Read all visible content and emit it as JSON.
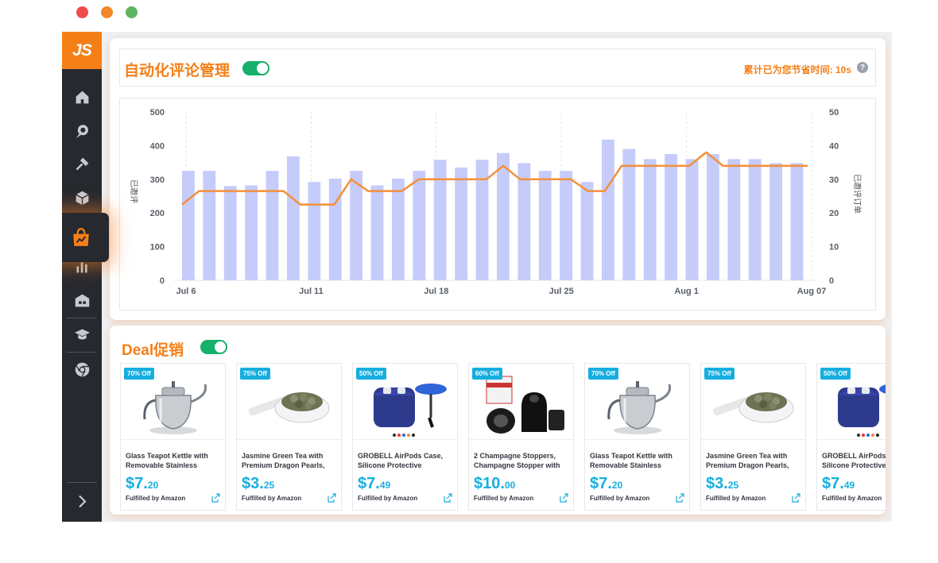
{
  "window_colors": {
    "red": "#ee4b4a",
    "orange": "#f0882a",
    "green": "#5fb55f"
  },
  "sidebar": {
    "logo": "JS",
    "icons": [
      "home-icon",
      "search-chat-icon",
      "hammer-icon",
      "box-icon",
      "shopping-bag-trend-icon",
      "bar-chart-icon",
      "warehouse-icon",
      "graduation-cap-icon",
      "chrome-icon",
      "expand-arrow-icon"
    ],
    "active": "shopping-bag-trend-icon"
  },
  "review_panel": {
    "title": "自动化评论管理",
    "toggle_on": true,
    "saved_time": "累计已为您节省时间: 10s",
    "help": "?"
  },
  "chart_data": {
    "type": "bar",
    "x_labels": [
      "Jul 6",
      "Jul 11",
      "Jul 18",
      "Jul 25",
      "Aug 1",
      "Aug 07"
    ],
    "ylabel_left": "已邀评",
    "ylabel_right": "已邀评订单",
    "left_axis_ticks": [
      "500",
      "400",
      "300",
      "200",
      "100",
      "0"
    ],
    "right_axis_ticks": [
      "50",
      "40",
      "30",
      "20",
      "10",
      "0"
    ],
    "ylim_left": [
      0,
      500
    ],
    "ylim_right": [
      0,
      50
    ],
    "bar_values": [
      325,
      325,
      280,
      282,
      325,
      368,
      292,
      302,
      325,
      282,
      302,
      325,
      358,
      335,
      358,
      378,
      348,
      325,
      325,
      292,
      418,
      390,
      360,
      375,
      360,
      375,
      360,
      360,
      348,
      348
    ],
    "line_values": [
      22.5,
      26.5,
      26.5,
      26.5,
      26.5,
      26.5,
      26.5,
      22.5,
      22.5,
      22.5,
      30,
      26.5,
      26.5,
      26.5,
      30,
      30,
      30,
      30,
      30,
      34,
      30,
      30,
      30,
      30,
      26.5,
      26.5,
      34,
      34,
      34,
      34,
      34,
      38,
      34,
      34,
      34,
      34,
      34,
      34
    ],
    "bar_color": "#c5ccfa",
    "line_color": "#f58f3a",
    "grid": "vertical-dashed"
  },
  "deal_panel": {
    "title": "Deal促销",
    "toggle_on": true,
    "cards": [
      {
        "badge": "70% Off",
        "image": "teapot-icon",
        "name1": "Glass Teapot Kettle with",
        "name2": "Removable Stainless",
        "dollars": "$7.",
        "cents": "20",
        "fulfilled": "Fulfilled by Amazon"
      },
      {
        "badge": "75% Off",
        "image": "tea-spoon-icon",
        "name1": "Jasmine Green Tea with",
        "name2": "Premium Dragon Pearls,",
        "dollars": "$3.",
        "cents": "25",
        "fulfilled": "Fulfilled by Amazon"
      },
      {
        "badge": "50% Off",
        "image": "airpods-case-icon",
        "name1": "GROBELL AirPods Case,",
        "name2": "Silicone Protective",
        "dollars": "$7.",
        "cents": "49",
        "fulfilled": "Fulfilled by Amazon"
      },
      {
        "badge": "60% Off",
        "image": "champagne-stopper-icon",
        "name1": "2 Champagne Stoppers,",
        "name2": "Champagne Stopper with",
        "dollars": "$10.",
        "cents": "00",
        "fulfilled": "Fulfilled by Amazon"
      },
      {
        "badge": "70% Off",
        "image": "teapot-icon",
        "name1": "Glass Teapot Kettle with",
        "name2": "Removable Stainless",
        "dollars": "$7.",
        "cents": "20",
        "fulfilled": "Fulfilled by Amazon"
      },
      {
        "badge": "75% Off",
        "image": "tea-spoon-icon",
        "name1": "Jasmine Green Tea with",
        "name2": "Premium Dragon Pearls,",
        "dollars": "$3.",
        "cents": "25",
        "fulfilled": "Fulfilled by Amazon"
      },
      {
        "badge": "50% Off",
        "image": "airpods-case-icon",
        "name1": "GROBELL AirPods Case,",
        "name2": "Silicone Protective",
        "dollars": "$7.",
        "cents": "49",
        "fulfilled": "Fulfilled by Amazon"
      }
    ]
  }
}
